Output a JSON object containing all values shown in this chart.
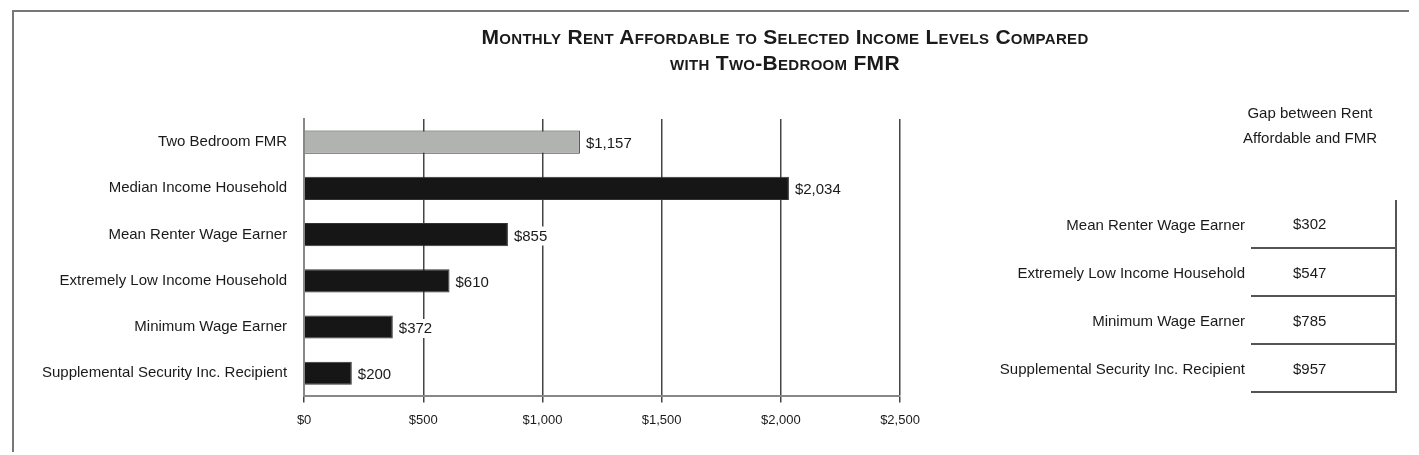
{
  "chart_data": [
    {
      "type": "bar",
      "orientation": "horizontal",
      "title": "Monthly Rent Affordable to Selected Income Levels Compared with Two-Bedroom FMR",
      "categories": [
        "Two Bedroom FMR",
        "Median Income Household",
        "Mean Renter Wage Earner",
        "Extremely Low Income Household",
        "Minimum Wage Earner",
        "Supplemental Security Inc. Recipient"
      ],
      "values": [
        1157,
        2034,
        855,
        610,
        372,
        200
      ],
      "colors": [
        "#b1b3b1",
        "#161616",
        "#161616",
        "#161616",
        "#161616",
        "#161616"
      ],
      "value_labels": [
        "$1,157",
        "$2,034",
        "$855",
        "$610",
        "$372",
        "$200"
      ],
      "xlim": [
        0,
        2500
      ],
      "xticks": [
        {
          "value": 0,
          "label": "$0"
        },
        {
          "value": 500,
          "label": "$500"
        },
        {
          "value": 1000,
          "label": "$1,000"
        },
        {
          "value": 1500,
          "label": "$1,500"
        },
        {
          "value": 2000,
          "label": "$2,000"
        },
        {
          "value": 2500,
          "label": "$2,500"
        }
      ],
      "grid": "x"
    },
    {
      "type": "other",
      "title": "Gap between Rent Affordable and FMR",
      "categories": [
        "Mean Renter Wage Earner",
        "Extremely Low Income Household",
        "Minimum Wage Earner",
        "Supplemental Security Inc. Recipient"
      ],
      "values": [
        302,
        547,
        785,
        957
      ],
      "value_labels": [
        "$302",
        "$547",
        "$785",
        "$957"
      ]
    }
  ]
}
